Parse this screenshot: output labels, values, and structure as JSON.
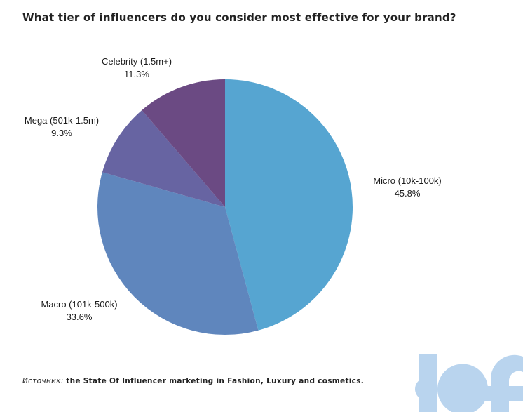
{
  "chart_data": {
    "type": "pie",
    "title": "What tier of influencers do you consider most effective for your brand?",
    "slices": [
      {
        "label": "Micro (10k-100k)",
        "value": 45.8,
        "value_label": "45.8%",
        "color": "#56a5d1"
      },
      {
        "label": "Macro (101k-500k)",
        "value": 33.6,
        "value_label": "33.6%",
        "color": "#5f86bd"
      },
      {
        "label": "Mega (501k-1.5m)",
        "value": 9.3,
        "value_label": "9.3%",
        "color": "#6764a2"
      },
      {
        "label": "Celebrity (1.5m+)",
        "value": 11.3,
        "value_label": "11.3%",
        "color": "#6b4a83"
      }
    ],
    "start": "12 o'clock",
    "direction": "clockwise",
    "legend": "none"
  },
  "source": {
    "prefix": "Источник:",
    "text": "the State Of Influencer marketing in Fashion, Luxury and cosmetics."
  },
  "logo": {
    "text": "bf",
    "color": "#b9d4ee"
  }
}
